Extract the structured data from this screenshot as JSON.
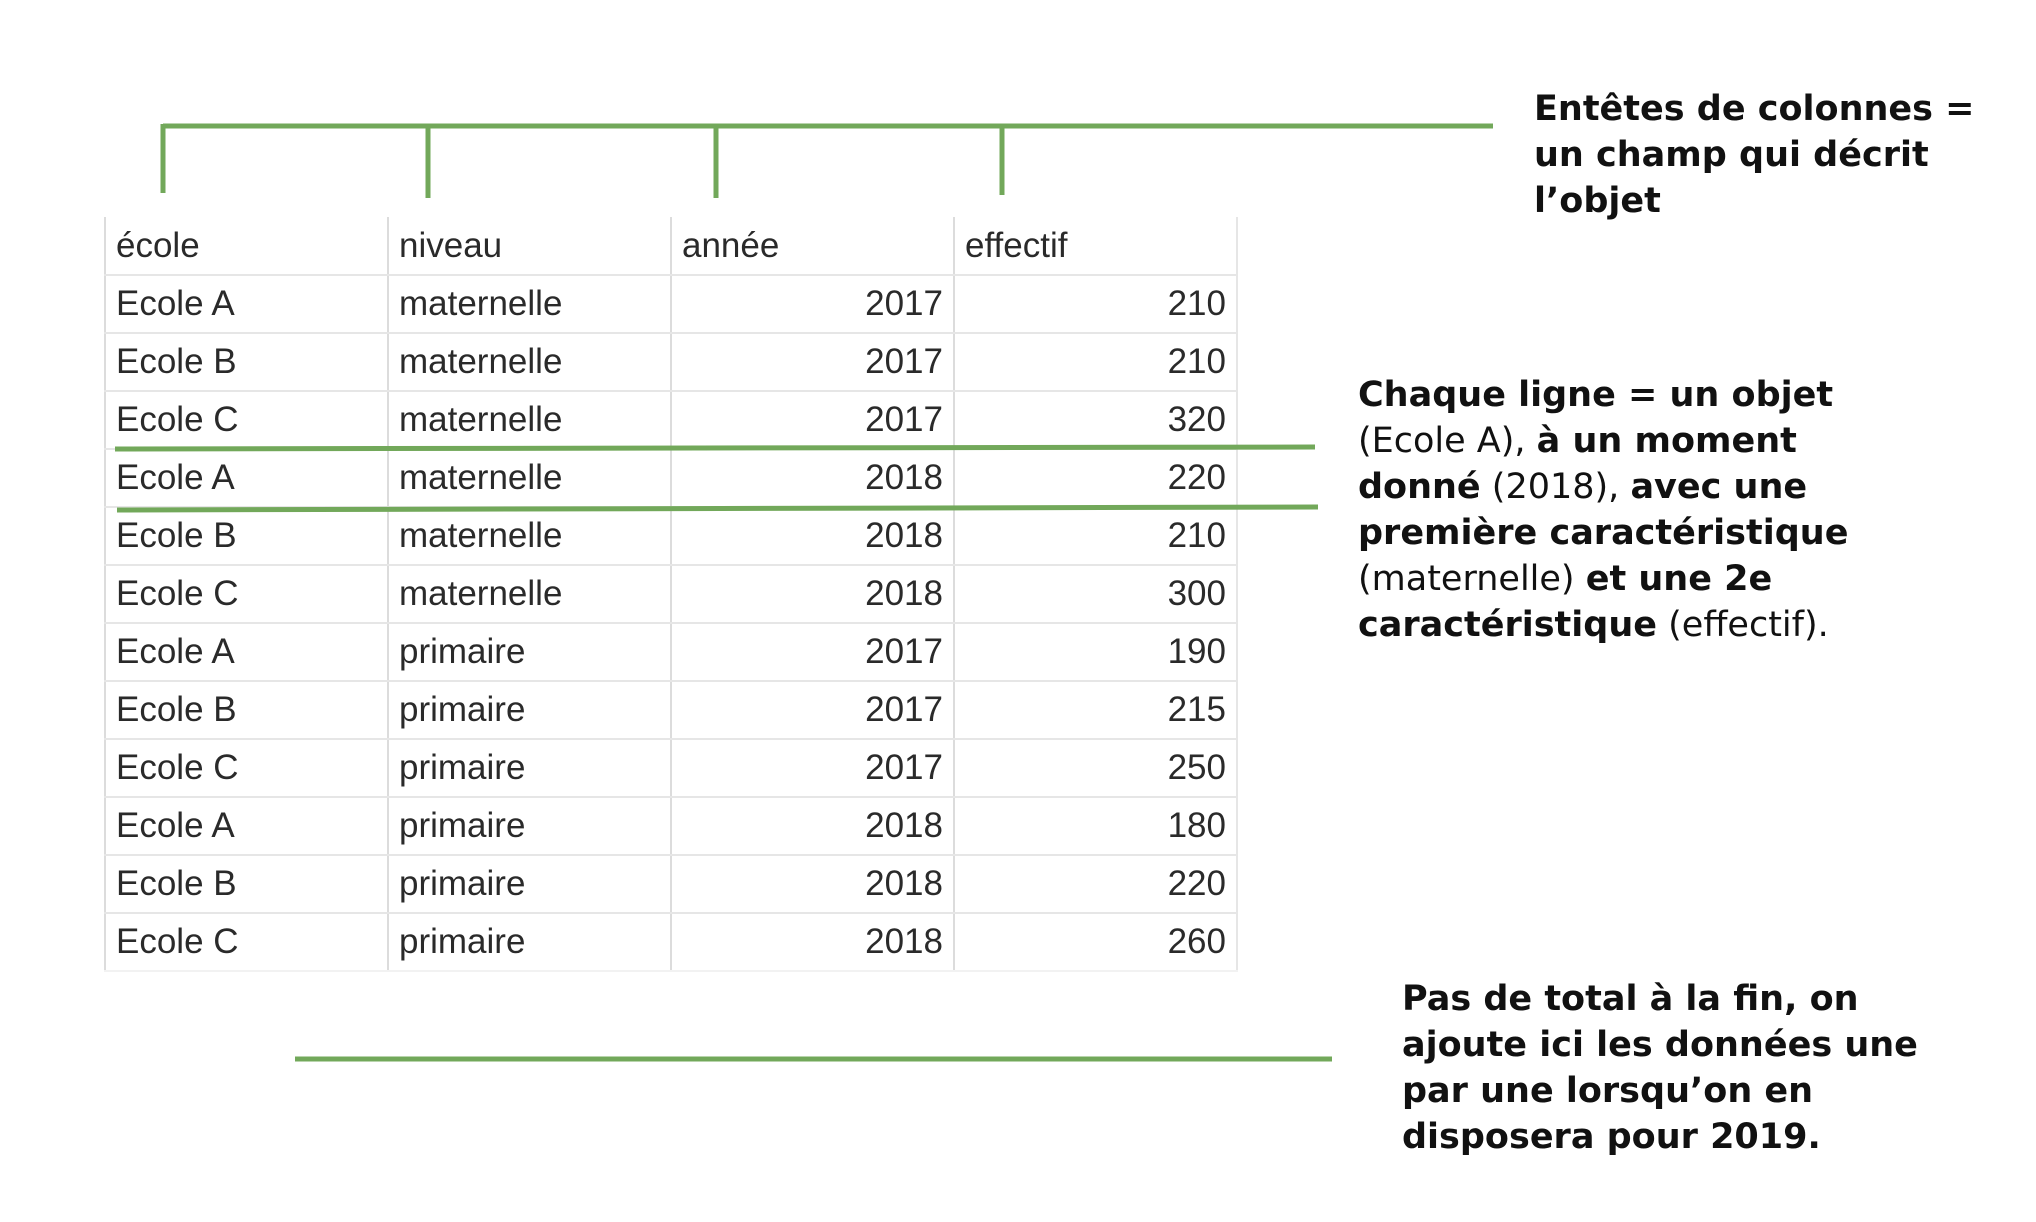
{
  "table": {
    "headers": [
      "école",
      "niveau",
      "année",
      "effectif"
    ],
    "rows": [
      [
        "Ecole A",
        "maternelle",
        "2017",
        "210"
      ],
      [
        "Ecole B",
        "maternelle",
        "2017",
        "210"
      ],
      [
        "Ecole C",
        "maternelle",
        "2017",
        "320"
      ],
      [
        "Ecole A",
        "maternelle",
        "2018",
        "220"
      ],
      [
        "Ecole B",
        "maternelle",
        "2018",
        "210"
      ],
      [
        "Ecole C",
        "maternelle",
        "2018",
        "300"
      ],
      [
        "Ecole A",
        "primaire",
        "2017",
        "190"
      ],
      [
        "Ecole B",
        "primaire",
        "2017",
        "215"
      ],
      [
        "Ecole C",
        "primaire",
        "2017",
        "250"
      ],
      [
        "Ecole A",
        "primaire",
        "2018",
        "180"
      ],
      [
        "Ecole B",
        "primaire",
        "2018",
        "220"
      ],
      [
        "Ecole C",
        "primaire",
        "2018",
        "260"
      ]
    ]
  },
  "annotations": {
    "headers_note": {
      "line1": "Entêtes de colonnes =",
      "line2": "un champ qui décrit",
      "line3": "l’objet"
    },
    "row_note": {
      "p1": "Chaque ligne = un objet",
      "p2": "(Ecole A), ",
      "p3": "à un moment",
      "p4": "donné",
      "p5": " (2018), ",
      "p6": "avec une",
      "p7": "première caractéristique",
      "p8": "(maternelle) ",
      "p9": "et une 2e",
      "p10": "caractéristique",
      "p11": " (effectif)."
    },
    "total_note": {
      "line1": "Pas de total à la fin, on",
      "line2": "ajoute ici les données une",
      "line3": "par une lorsqu’on en",
      "line4": "disposera pour 2019."
    }
  },
  "colors": {
    "annotation_line": "#72a85a",
    "grid": "#dcdcdc",
    "text": "#111111"
  }
}
